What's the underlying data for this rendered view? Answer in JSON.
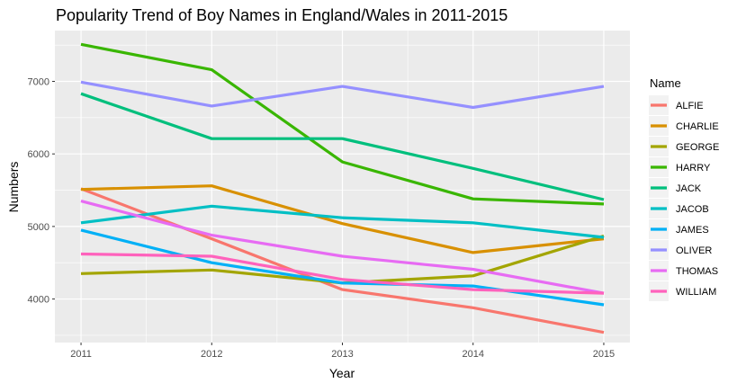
{
  "chart_data": {
    "type": "line",
    "title": "Popularity Trend of Boy Names in England/Wales in 2011-2015",
    "xlabel": "Year",
    "ylabel": "Numbers",
    "x": [
      2011,
      2012,
      2013,
      2014,
      2015
    ],
    "x_tick_labels": [
      "2011",
      "2012",
      "2013",
      "2014",
      "2015"
    ],
    "y_ticks": [
      4000,
      5000,
      6000,
      7000
    ],
    "y_tick_labels": [
      "4000",
      "5000",
      "6000",
      "7000"
    ],
    "xlim": [
      2010.8,
      2015.2
    ],
    "ylim": [
      3400,
      7700
    ],
    "grid": true,
    "legend": {
      "title": "Name",
      "position": "right"
    },
    "series": [
      {
        "name": "ALFIE",
        "color": "#F8766D",
        "values": [
          5520,
          4830,
          4130,
          3880,
          3540
        ]
      },
      {
        "name": "CHARLIE",
        "color": "#D89000",
        "values": [
          5510,
          5560,
          5040,
          4640,
          4830
        ]
      },
      {
        "name": "GEORGE",
        "color": "#A3A500",
        "values": [
          4350,
          4400,
          4220,
          4320,
          4870
        ]
      },
      {
        "name": "HARRY",
        "color": "#39B600",
        "values": [
          7510,
          7160,
          5890,
          5380,
          5310
        ]
      },
      {
        "name": "JACK",
        "color": "#00BF7D",
        "values": [
          6830,
          6210,
          6210,
          5800,
          5370
        ]
      },
      {
        "name": "JACOB",
        "color": "#00BFC4",
        "values": [
          5050,
          5280,
          5120,
          5050,
          4850
        ]
      },
      {
        "name": "JAMES",
        "color": "#00B0F6",
        "values": [
          4950,
          4500,
          4220,
          4180,
          3920
        ]
      },
      {
        "name": "OLIVER",
        "color": "#9590FF",
        "values": [
          6990,
          6660,
          6930,
          6640,
          6930
        ]
      },
      {
        "name": "THOMAS",
        "color": "#E76BF3",
        "values": [
          5350,
          4880,
          4590,
          4410,
          4080
        ]
      },
      {
        "name": "WILLIAM",
        "color": "#FF62BC",
        "values": [
          4620,
          4590,
          4270,
          4130,
          4080
        ]
      }
    ]
  },
  "style": {
    "panel_bg": "#EBEBEB",
    "grid_major": "#FFFFFF",
    "legend_key_bg": "#F2F2F2"
  }
}
